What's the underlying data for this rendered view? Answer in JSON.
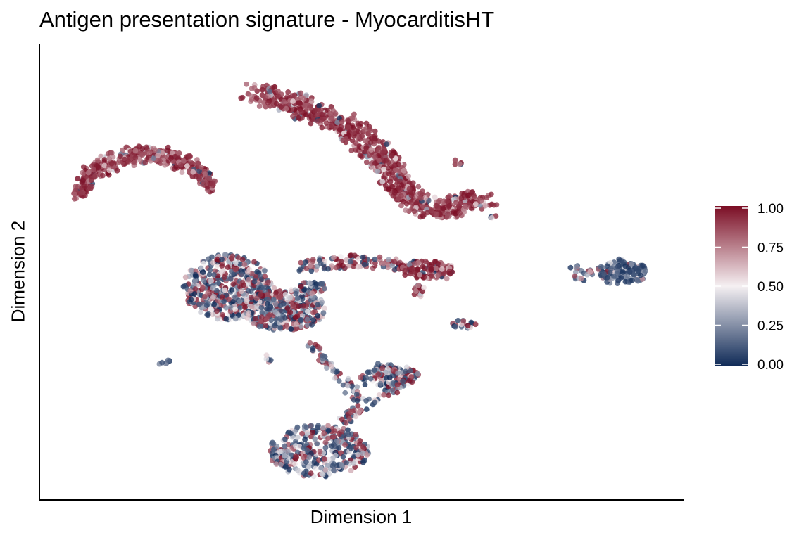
{
  "chart_data": {
    "type": "scatter",
    "title": "Antigen presentation signature - MyocarditisHT",
    "xlabel": "Dimension 1",
    "ylabel": "Dimension 2",
    "xlim": [
      0,
      100
    ],
    "ylim": [
      0,
      100
    ],
    "axis_ticks_shown": false,
    "grid": false,
    "color_scale": {
      "min": 0.0,
      "max": 1.0,
      "ticks": [
        1.0,
        0.75,
        0.5,
        0.25,
        0.0
      ],
      "tick_labels": [
        "1.00",
        "0.75",
        "0.50",
        "0.25",
        "0.00"
      ],
      "low_color": "#0f2a57",
      "mid_color": "#f5f0f2",
      "high_color": "#7b0d24",
      "legend_position": "right"
    },
    "clusters": [
      {
        "shape": "arc",
        "x": [
          4.5,
          24.0
        ],
        "y": [
          68.0,
          77.5
        ],
        "score": 0.9,
        "n": 440
      },
      {
        "shape": "band",
        "points": [
          [
            33,
            92
          ],
          [
            40,
            89
          ],
          [
            48,
            84
          ],
          [
            53,
            78
          ],
          [
            56,
            71
          ],
          [
            58,
            67
          ],
          [
            61,
            65
          ],
          [
            64,
            65
          ],
          [
            67,
            67
          ],
          [
            70,
            67
          ]
        ],
        "width": 2.2,
        "score": 0.85,
        "n": 800
      },
      {
        "shape": "blob",
        "cx": 29,
        "cy": 47,
        "rx": 7.0,
        "ry": 7.5,
        "score": 0.4,
        "n": 450
      },
      {
        "shape": "blob",
        "cx": 38,
        "cy": 42,
        "rx": 6.5,
        "ry": 5.0,
        "score": 0.4,
        "n": 300
      },
      {
        "shape": "band",
        "points": [
          [
            41,
            52
          ],
          [
            50,
            53
          ],
          [
            58,
            52
          ],
          [
            64,
            50
          ]
        ],
        "width": 1.4,
        "score": 0.7,
        "n": 160
      },
      {
        "shape": "blob",
        "cx": 42.5,
        "cy": 47.0,
        "rx": 2.0,
        "ry": 1.5,
        "score": 0.35,
        "n": 35
      },
      {
        "shape": "blob",
        "cx": 60.5,
        "cy": 51.0,
        "rx": 4.5,
        "ry": 2.0,
        "score": 0.85,
        "n": 90
      },
      {
        "shape": "blob",
        "cx": 59.5,
        "cy": 46.0,
        "rx": 1.0,
        "ry": 1.5,
        "score": 0.75,
        "n": 18
      },
      {
        "shape": "blob",
        "cx": 91.5,
        "cy": 50.5,
        "rx": 4.0,
        "ry": 3.0,
        "score": 0.2,
        "n": 130
      },
      {
        "shape": "blob",
        "cx": 85.0,
        "cy": 50.5,
        "rx": 2.0,
        "ry": 2.0,
        "score": 0.4,
        "n": 22
      },
      {
        "shape": "blob",
        "cx": 66.5,
        "cy": 38.5,
        "rx": 2.0,
        "ry": 1.0,
        "score": 0.3,
        "n": 22
      },
      {
        "shape": "band",
        "points": [
          [
            42,
            34
          ],
          [
            45,
            29
          ],
          [
            48,
            25
          ],
          [
            50,
            20
          ],
          [
            47,
            15
          ]
        ],
        "width": 1.0,
        "score": 0.35,
        "n": 80
      },
      {
        "shape": "band",
        "points": [
          [
            50,
            25
          ],
          [
            53,
            29
          ],
          [
            56,
            28
          ]
        ],
        "width": 0.9,
        "score": 0.3,
        "n": 30
      },
      {
        "shape": "band",
        "points": [
          [
            48,
            17
          ],
          [
            52,
            21
          ],
          [
            56,
            24
          ]
        ],
        "width": 0.8,
        "score": 0.35,
        "n": 25
      },
      {
        "shape": "blob",
        "cx": 55.5,
        "cy": 26.5,
        "rx": 4.0,
        "ry": 2.5,
        "score": 0.35,
        "n": 120
      },
      {
        "shape": "blob",
        "cx": 43.5,
        "cy": 9.5,
        "rx": 8.0,
        "ry": 6.0,
        "score": 0.35,
        "n": 340
      },
      {
        "shape": "band",
        "points": [
          [
            18.5,
            29.5
          ],
          [
            20.5,
            30.5
          ]
        ],
        "width": 0.4,
        "score": 0.05,
        "n": 6
      },
      {
        "shape": "blob",
        "cx": 35.5,
        "cy": 30.5,
        "rx": 0.5,
        "ry": 1.2,
        "score": 0.7,
        "n": 5
      },
      {
        "shape": "blob",
        "cx": 65.5,
        "cy": 75.5,
        "rx": 0.6,
        "ry": 1.0,
        "score": 0.7,
        "n": 5
      },
      {
        "shape": "blob",
        "cx": 71.0,
        "cy": 63.5,
        "rx": 0.6,
        "ry": 0.8,
        "score": 0.5,
        "n": 4
      }
    ]
  }
}
